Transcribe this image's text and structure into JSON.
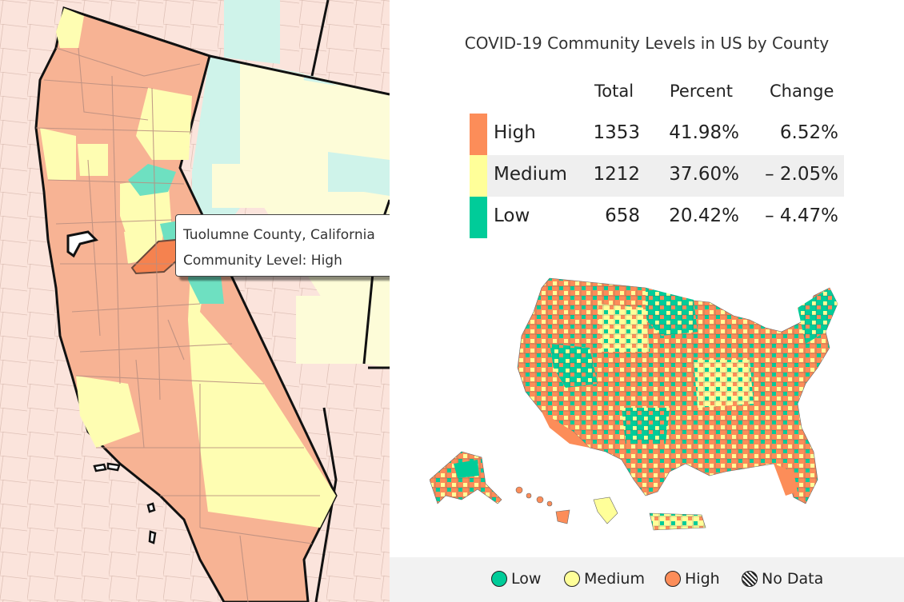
{
  "title": "COVID-19 Community Levels in US by County",
  "table": {
    "headers": {
      "total": "Total",
      "percent": "Percent",
      "change": "Change"
    },
    "rows": [
      {
        "level": "High",
        "total": "1353",
        "percent": "41.98%",
        "change": "6.52%",
        "color": "#fc8d59"
      },
      {
        "level": "Medium",
        "total": "1212",
        "percent": "37.60%",
        "change": "– 2.05%",
        "color": "#ffff99"
      },
      {
        "level": "Low",
        "total": "658",
        "percent": "20.42%",
        "change": "– 4.47%",
        "color": "#00cc99"
      }
    ]
  },
  "tooltip": {
    "county": "Tuolumne County, California",
    "level": "Community Level: High"
  },
  "legend": [
    {
      "label": "Low",
      "color": "#00cc99"
    },
    {
      "label": "Medium",
      "color": "#ffff99"
    },
    {
      "label": "High",
      "color": "#fc8d59"
    },
    {
      "label": "No Data",
      "color": "hatched"
    }
  ],
  "colors": {
    "high": "#fc8d59",
    "medium": "#ffff99",
    "low": "#00cc99",
    "high_faded": "#f5b093",
    "medium_faded": "#fdfdc6",
    "low_faded": "#9fe9d5"
  }
}
